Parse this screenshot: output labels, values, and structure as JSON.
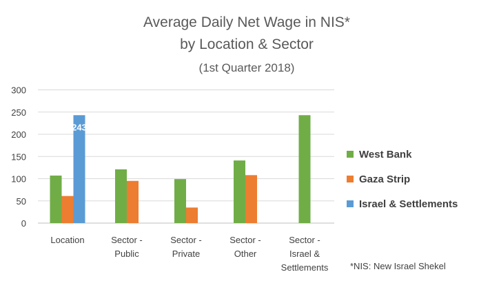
{
  "chart_data": {
    "type": "bar",
    "title_lines": [
      "Average Daily Net Wage in NIS*",
      "by Location & Sector",
      "(1st Quarter 2018)"
    ],
    "categories": [
      [
        "Location"
      ],
      [
        "Sector -",
        "Public"
      ],
      [
        "Sector -",
        "Private"
      ],
      [
        "Sector -",
        "Other"
      ],
      [
        "Sector -",
        "Israel &",
        "Settlements"
      ]
    ],
    "series": [
      {
        "name": "West Bank",
        "color": "#70ad47",
        "values": [
          107,
          121,
          99,
          141,
          243
        ]
      },
      {
        "name": "Gaza Strip",
        "color": "#ed7d31",
        "values": [
          61,
          95,
          35,
          108,
          null
        ]
      },
      {
        "name": "Israel & Settlements",
        "color": "#5b9bd5",
        "values": [
          243,
          null,
          null,
          null,
          null
        ]
      }
    ],
    "data_labels": [
      {
        "series": 2,
        "category": 0,
        "text": "243"
      }
    ],
    "ylim": [
      0,
      300
    ],
    "yticks": [
      0,
      50,
      100,
      150,
      200,
      250,
      300
    ],
    "grid": true,
    "legend_position": "right",
    "footnote": "*NIS: New Israel Shekel"
  }
}
